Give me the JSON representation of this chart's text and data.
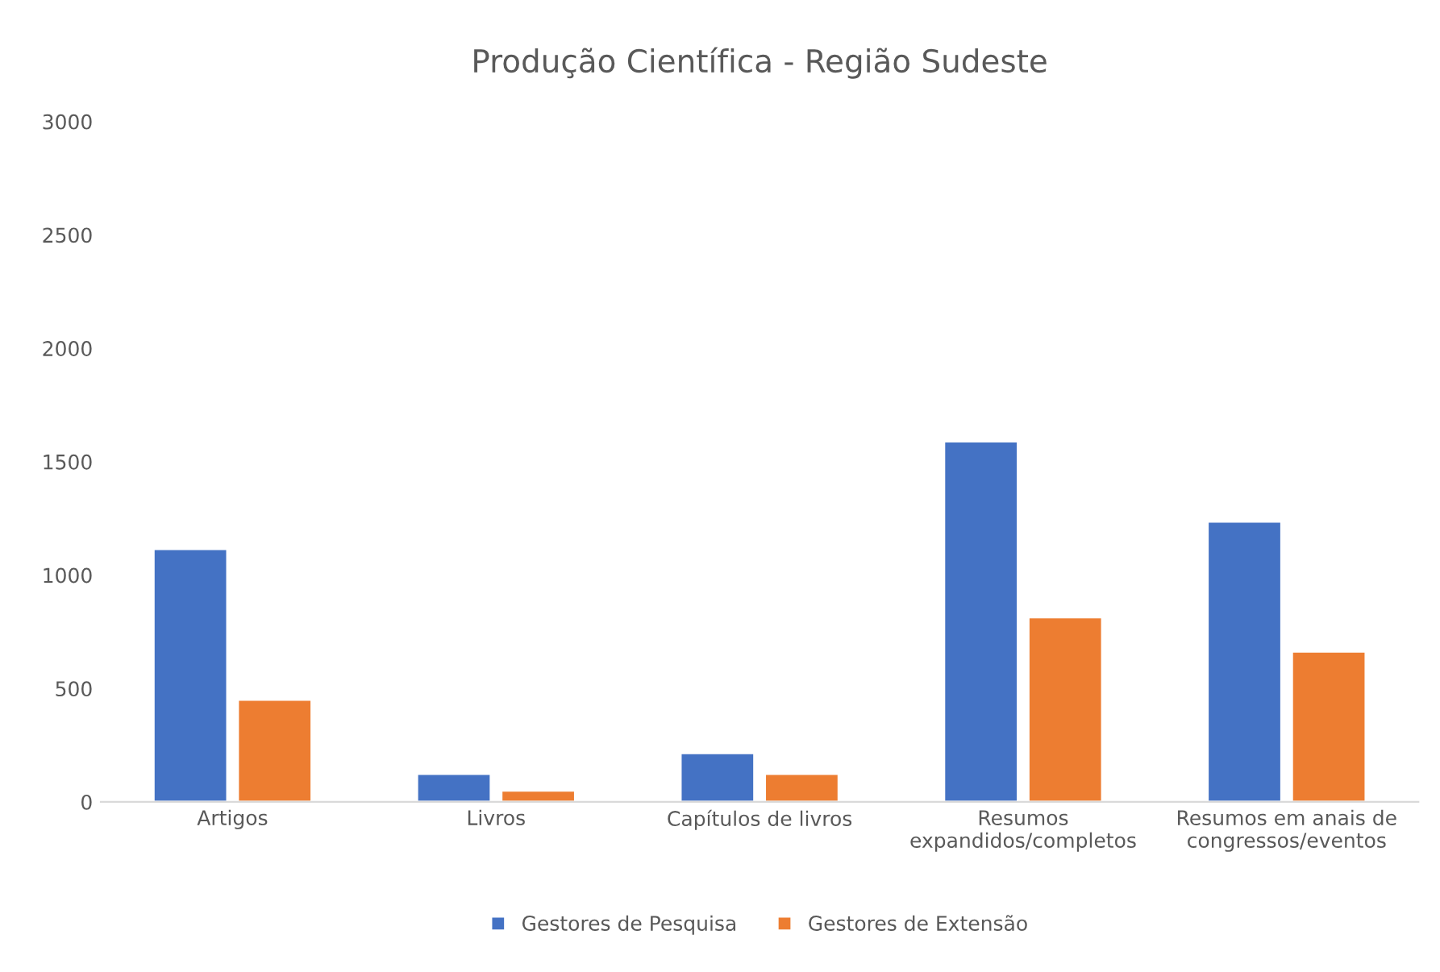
{
  "chart_data": {
    "type": "bar",
    "title": "Produção Científica - Região Sudeste",
    "categories": [
      "Artigos",
      "Livros",
      "Capítulos de livros",
      "Resumos\nexpandidos/completos",
      "Resumos em anais de\ncongressos/eventos"
    ],
    "series": [
      {
        "name": "Gestores de Pesquisa",
        "color": "#4472c4",
        "values": [
          1115,
          124,
          215,
          1590,
          1236
        ]
      },
      {
        "name": "Gestores de Extensão",
        "color": "#ed7d31",
        "values": [
          451,
          50,
          124,
          814,
          663
        ]
      }
    ],
    "ylim": [
      0,
      3000
    ],
    "yticks": [
      0,
      500,
      1000,
      1500,
      2000,
      2500,
      3000
    ],
    "grid": false,
    "legend": "bottom"
  }
}
